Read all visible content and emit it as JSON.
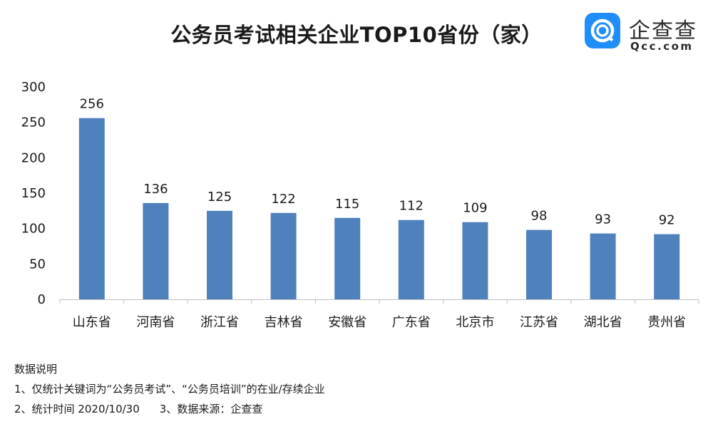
{
  "header": {
    "title": "公务员考试相关企业TOP10省份（家）"
  },
  "logo": {
    "name": "企查查",
    "domain": "Qcc.com",
    "brand_color": "#1f8efa"
  },
  "chart_data": {
    "type": "bar",
    "title": "公务员考试相关企业TOP10省份（家）",
    "categories": [
      "山东省",
      "河南省",
      "浙江省",
      "吉林省",
      "安徽省",
      "广东省",
      "北京市",
      "江苏省",
      "湖北省",
      "贵州省"
    ],
    "values": [
      256,
      136,
      125,
      122,
      115,
      112,
      109,
      98,
      93,
      92
    ],
    "data_labels": [
      "256",
      "136",
      "125",
      "122",
      "115",
      "112",
      "109",
      "98",
      "93",
      "92"
    ],
    "ylim": [
      0,
      300
    ],
    "yticks": [
      0,
      50,
      100,
      150,
      200,
      250,
      300
    ],
    "ytick_labels": [
      "0",
      "50",
      "100",
      "150",
      "200",
      "250",
      "300"
    ],
    "xlabel": "",
    "ylabel": "",
    "grid": false,
    "bar_color": "#4f81bd"
  },
  "notes": {
    "heading": "数据说明",
    "line1": "1、仅统计关键词为“公务员考试”、“公务员培训”的在业/存续企业",
    "line2a": "2、统计时间 2020/10/30",
    "line2b": "3、数据来源：企查查"
  }
}
